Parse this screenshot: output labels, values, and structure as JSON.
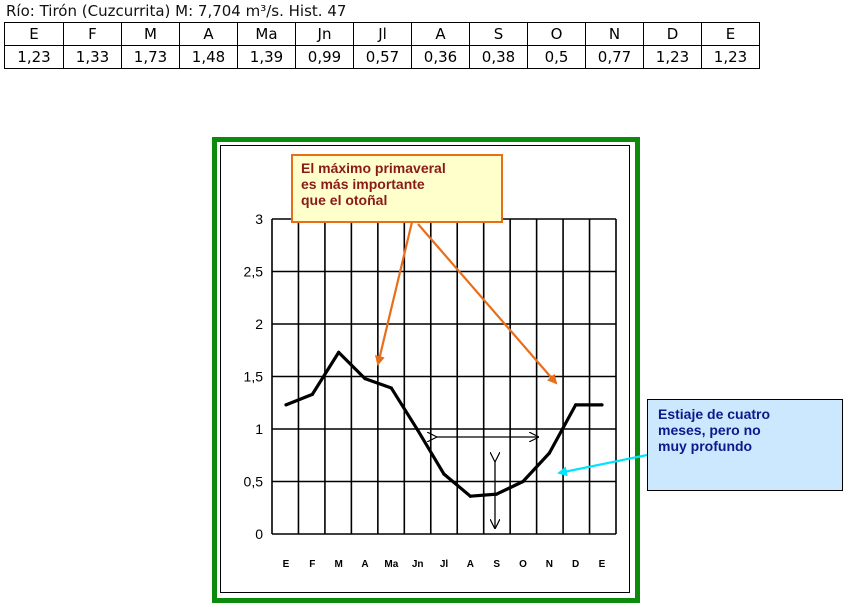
{
  "header": {
    "label": "Río: Tirón (Cuzcurrita) M: 7,704 m³/s. Hist. 47"
  },
  "table": {
    "months": [
      "E",
      "F",
      "M",
      "A",
      "Ma",
      "Jn",
      "Jl",
      "A",
      "S",
      "O",
      "N",
      "D",
      "E"
    ],
    "values": [
      "1,23",
      "1,33",
      "1,73",
      "1,48",
      "1,39",
      "0,99",
      "0,57",
      "0,36",
      "0,38",
      "0,5",
      "0,77",
      "1,23",
      "1,23"
    ]
  },
  "chart_data": {
    "type": "line",
    "categories": [
      "E",
      "F",
      "M",
      "A",
      "Ma",
      "Jn",
      "Jl",
      "A",
      "S",
      "O",
      "N",
      "D",
      "E"
    ],
    "series": [
      {
        "values": [
          1.23,
          1.33,
          1.73,
          1.48,
          1.39,
          0.99,
          0.57,
          0.36,
          0.38,
          0.5,
          0.77,
          1.23,
          1.23
        ]
      }
    ],
    "y_ticks": [
      "0",
      "0,5",
      "1",
      "1,5",
      "2",
      "2,5",
      "3"
    ],
    "ylim": [
      0,
      3
    ],
    "grid": true,
    "line_color": "#000000",
    "frame_color": "#0c8a0c",
    "annotations": [
      {
        "id": "spring",
        "text_lines": [
          "El máximo primaveral",
          "es más importante",
          "que el otoñal"
        ],
        "text_color": "#8a1a1a",
        "box_color": "#ffffcc",
        "arrow_color": "#e86e1a"
      },
      {
        "id": "drought",
        "text_lines": [
          "Estiaje de cuatro",
          "meses, pero no",
          "muy profundo"
        ],
        "text_color": "#0a1a8a",
        "box_color": "#cce8ff",
        "arrow_color": "#00e5ff"
      }
    ]
  }
}
